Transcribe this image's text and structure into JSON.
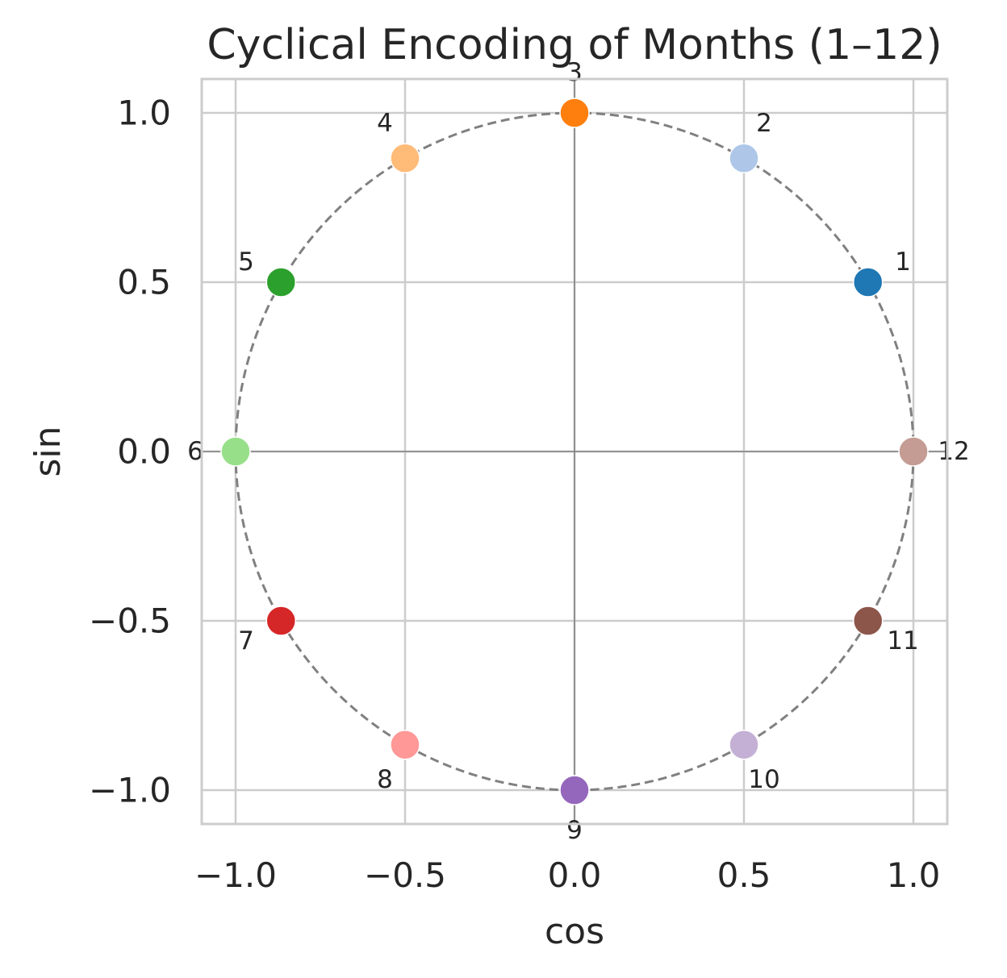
{
  "chart_data": {
    "type": "scatter",
    "title": "Cyclical Encoding of Months (1–12)",
    "xlabel": "cos",
    "ylabel": "sin",
    "xlim": [
      -1.1,
      1.1
    ],
    "ylim": [
      -1.1,
      1.1
    ],
    "xticks": [
      -1.0,
      -0.5,
      0.0,
      0.5,
      1.0
    ],
    "yticks": [
      -1.0,
      -0.5,
      0.0,
      0.5,
      1.0
    ],
    "xtick_labels": [
      "−1.0",
      "−0.5",
      "0.0",
      "0.5",
      "1.0"
    ],
    "ytick_labels": [
      "−1.0",
      "−0.5",
      "0.0",
      "0.5",
      "1.0"
    ],
    "grid": true,
    "reference_circle": {
      "radius": 1.0,
      "style": "dashed",
      "color": "#808080"
    },
    "reference_axes": {
      "x": 0,
      "y": 0,
      "color": "#808080"
    },
    "points": [
      {
        "label": "1",
        "x": 0.866,
        "y": 0.5,
        "color": "#1f77b4"
      },
      {
        "label": "2",
        "x": 0.5,
        "y": 0.866,
        "color": "#aec7e8"
      },
      {
        "label": "3",
        "x": 0.0,
        "y": 1.0,
        "color": "#ff7f0e"
      },
      {
        "label": "4",
        "x": -0.5,
        "y": 0.866,
        "color": "#ffbb78"
      },
      {
        "label": "5",
        "x": -0.866,
        "y": 0.5,
        "color": "#2ca02c"
      },
      {
        "label": "6",
        "x": -1.0,
        "y": 0.0,
        "color": "#98df8a"
      },
      {
        "label": "7",
        "x": -0.866,
        "y": -0.5,
        "color": "#d62728"
      },
      {
        "label": "8",
        "x": -0.5,
        "y": -0.866,
        "color": "#ff9896"
      },
      {
        "label": "9",
        "x": 0.0,
        "y": -1.0,
        "color": "#9467bd"
      },
      {
        "label": "10",
        "x": 0.5,
        "y": -0.866,
        "color": "#c5b0d5"
      },
      {
        "label": "11",
        "x": 0.866,
        "y": -0.5,
        "color": "#8c564b"
      },
      {
        "label": "12",
        "x": 1.0,
        "y": 0.0,
        "color": "#c49c94"
      }
    ]
  }
}
